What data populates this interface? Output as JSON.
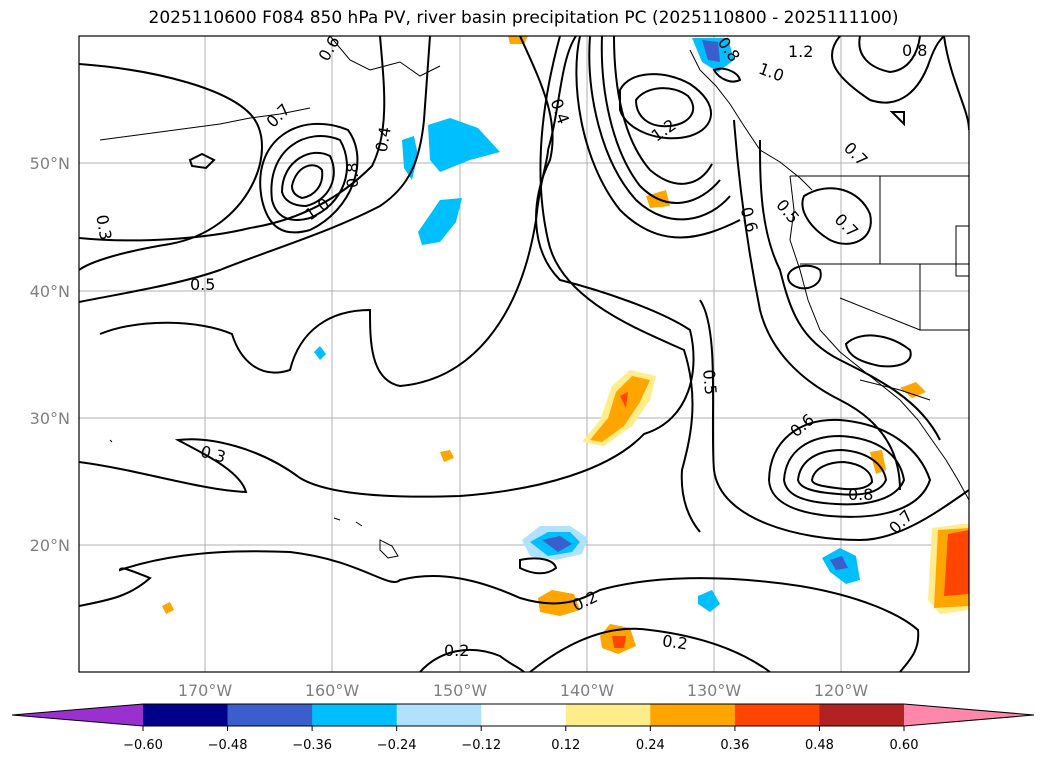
{
  "title": "2025110600 F084 850 hPa PV, river basin precipitation PC (2025110800 - 2025111100)",
  "map": {
    "lon_labels": [
      "170°W",
      "160°W",
      "150°W",
      "140°W",
      "130°W",
      "120°W"
    ],
    "lat_labels": [
      "50°N",
      "40°N",
      "30°N",
      "20°N"
    ],
    "contour_labels": [
      "0.6",
      "0.7",
      "1.0",
      "0.8",
      "0.4",
      "0.3",
      "0.5",
      "0.3",
      "0.4",
      "1.2",
      "1.0",
      "0.8",
      "1.2",
      "0.8",
      "0.7",
      "0.6",
      "0.5",
      "0.7",
      "0.5",
      "0.6",
      "0.8",
      "0.7",
      "0.2",
      "0.2",
      "0.2"
    ],
    "colorbar": {
      "ticks": [
        "−0.60",
        "−0.48",
        "−0.36",
        "−0.24",
        "−0.12",
        "0.12",
        "0.24",
        "0.36",
        "0.48",
        "0.60"
      ],
      "colors": [
        "#9b30d0",
        "#00008b",
        "#3a5fcd",
        "#00bfff",
        "#b0e2ff",
        "#ffffff",
        "#ffec8b",
        "#ffa500",
        "#ff4500",
        "#b22222",
        "#ff88aa"
      ]
    }
  }
}
